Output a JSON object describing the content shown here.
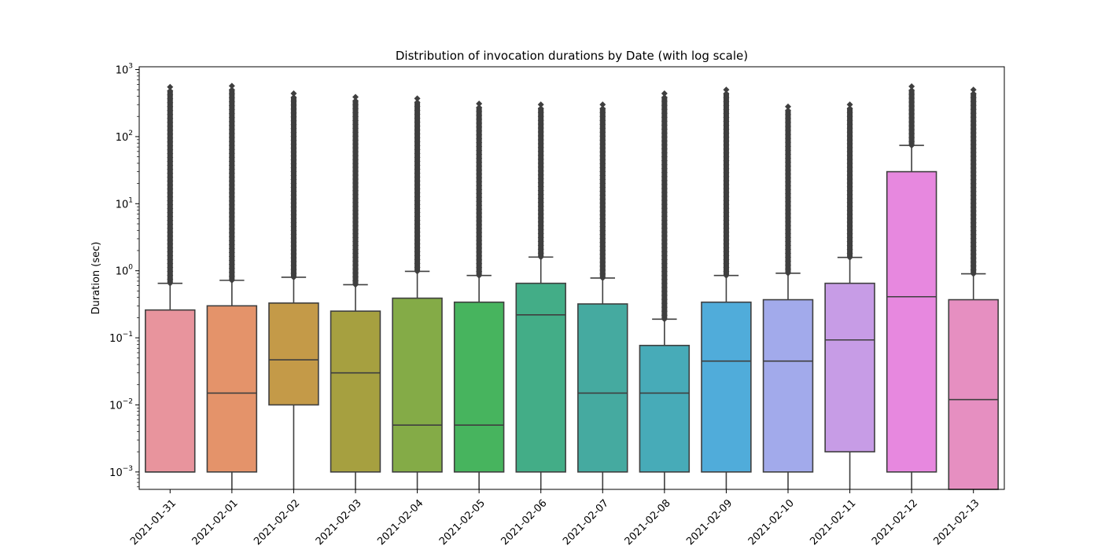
{
  "chart_data": {
    "type": "box",
    "title": "Distribution of invocation durations by Date (with log scale)",
    "xlabel": "",
    "ylabel": "Duration (sec)",
    "yscale": "log",
    "ylim": [
      0.00055,
      1100
    ],
    "yticks": [
      {
        "value": 0.001,
        "base": "10",
        "exp": "−3"
      },
      {
        "value": 0.01,
        "base": "10",
        "exp": "−2"
      },
      {
        "value": 0.1,
        "base": "10",
        "exp": "−1"
      },
      {
        "value": 1,
        "base": "10",
        "exp": "0"
      },
      {
        "value": 10,
        "base": "10",
        "exp": "1"
      },
      {
        "value": 100,
        "base": "10",
        "exp": "2"
      },
      {
        "value": 1000,
        "base": "10",
        "exp": "3"
      }
    ],
    "grid": false,
    "categories": [
      "2021-01-31",
      "2021-02-01",
      "2021-02-02",
      "2021-02-03",
      "2021-02-04",
      "2021-02-05",
      "2021-02-06",
      "2021-02-07",
      "2021-02-08",
      "2021-02-09",
      "2021-02-10",
      "2021-02-11",
      "2021-02-12",
      "2021-02-13"
    ],
    "boxes": [
      {
        "date": "2021-01-31",
        "q1": 0.001,
        "median": 0.001,
        "q3": 0.26,
        "whisker_low": 0.001,
        "whisker_high": 0.65,
        "outlier_min": 0.65,
        "outlier_max": 550,
        "color": "#e8949d"
      },
      {
        "date": "2021-02-01",
        "q1": 0.001,
        "median": 0.015,
        "q3": 0.3,
        "whisker_low": 0.00055,
        "whisker_high": 0.72,
        "outlier_min": 0.72,
        "outlier_max": 570,
        "color": "#e4936a"
      },
      {
        "date": "2021-02-02",
        "q1": 0.01,
        "median": 0.047,
        "q3": 0.33,
        "whisker_low": 0.00055,
        "whisker_high": 0.8,
        "outlier_min": 0.8,
        "outlier_max": 440,
        "color": "#c49a48"
      },
      {
        "date": "2021-02-03",
        "q1": 0.001,
        "median": 0.03,
        "q3": 0.25,
        "whisker_low": 0.00055,
        "whisker_high": 0.62,
        "outlier_min": 0.62,
        "outlier_max": 390,
        "color": "#a6a040"
      },
      {
        "date": "2021-02-04",
        "q1": 0.001,
        "median": 0.005,
        "q3": 0.39,
        "whisker_low": 0.00055,
        "whisker_high": 0.98,
        "outlier_min": 0.98,
        "outlier_max": 370,
        "color": "#84ab47"
      },
      {
        "date": "2021-02-05",
        "q1": 0.001,
        "median": 0.005,
        "q3": 0.34,
        "whisker_low": 0.00055,
        "whisker_high": 0.85,
        "outlier_min": 0.85,
        "outlier_max": 310,
        "color": "#47b45e"
      },
      {
        "date": "2021-02-06",
        "q1": 0.001,
        "median": 0.22,
        "q3": 0.65,
        "whisker_low": 0.00055,
        "whisker_high": 1.6,
        "outlier_min": 1.6,
        "outlier_max": 300,
        "color": "#43ad87"
      },
      {
        "date": "2021-02-07",
        "q1": 0.001,
        "median": 0.015,
        "q3": 0.32,
        "whisker_low": 0.00055,
        "whisker_high": 0.78,
        "outlier_min": 0.78,
        "outlier_max": 300,
        "color": "#45aaa0"
      },
      {
        "date": "2021-02-08",
        "q1": 0.001,
        "median": 0.015,
        "q3": 0.077,
        "whisker_low": 0.00055,
        "whisker_high": 0.19,
        "outlier_min": 0.19,
        "outlier_max": 440,
        "color": "#47abb8"
      },
      {
        "date": "2021-02-09",
        "q1": 0.001,
        "median": 0.045,
        "q3": 0.34,
        "whisker_low": 0.00055,
        "whisker_high": 0.85,
        "outlier_min": 0.85,
        "outlier_max": 500,
        "color": "#50acda"
      },
      {
        "date": "2021-02-10",
        "q1": 0.001,
        "median": 0.045,
        "q3": 0.37,
        "whisker_low": 0.00055,
        "whisker_high": 0.92,
        "outlier_min": 0.92,
        "outlier_max": 280,
        "color": "#a2aaeb"
      },
      {
        "date": "2021-02-11",
        "q1": 0.002,
        "median": 0.093,
        "q3": 0.65,
        "whisker_low": 0.00055,
        "whisker_high": 1.58,
        "outlier_min": 1.58,
        "outlier_max": 300,
        "color": "#c79ce6"
      },
      {
        "date": "2021-02-12",
        "q1": 0.001,
        "median": 0.41,
        "q3": 30,
        "whisker_low": 0.00055,
        "whisker_high": 74,
        "outlier_min": 74,
        "outlier_max": 560,
        "color": "#e788df"
      },
      {
        "date": "2021-02-13",
        "q1": 0.00055,
        "median": 0.012,
        "q3": 0.37,
        "whisker_low": 0.00055,
        "whisker_high": 0.9,
        "outlier_min": 0.9,
        "outlier_max": 500,
        "color": "#e68fc1"
      }
    ],
    "colors": {
      "axis": "#000000",
      "box_line": "#3f3f3f",
      "outlier": "#3f3f3f"
    }
  }
}
